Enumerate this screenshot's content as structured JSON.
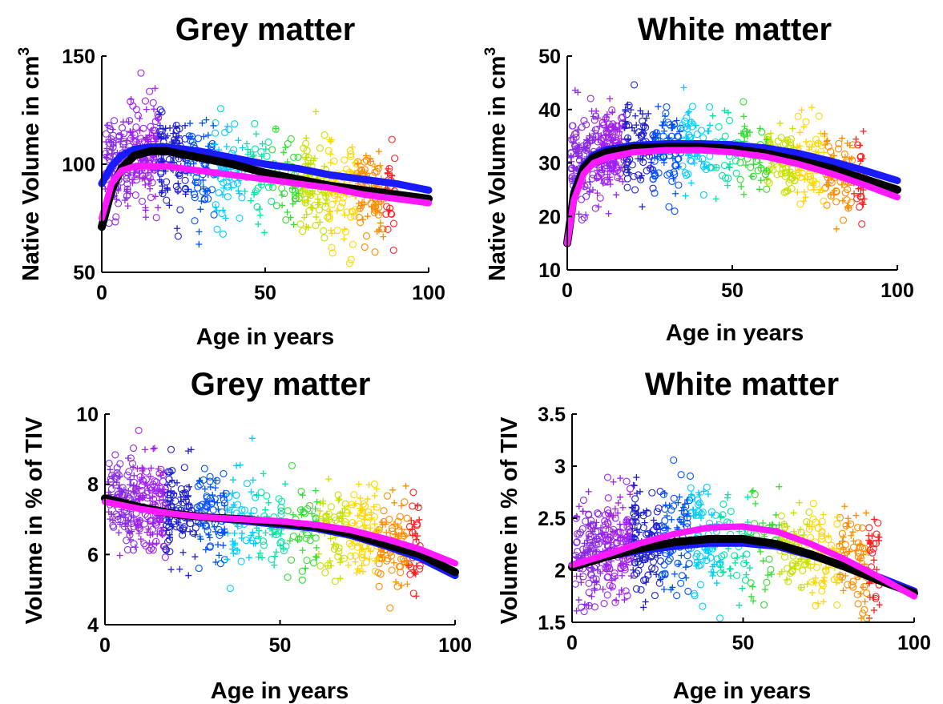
{
  "figure": {
    "colors": {
      "black_curve": "#000000",
      "blue_curve": "#1a1aff",
      "magenta_curve": "#ff19ff",
      "point_palette": [
        "#8a2be2",
        "#a020f0",
        "#1f1fd0",
        "#0050ff",
        "#00ccff",
        "#00e6a0",
        "#33dd33",
        "#c8e000",
        "#ffd700",
        "#ff8c00",
        "#ff2020"
      ],
      "marker_types": [
        "circle",
        "plus"
      ]
    }
  },
  "chart_data": [
    {
      "type": "scatter",
      "title": "Grey matter",
      "xlabel": "Age in years",
      "ylabel": "Native Volume in cm",
      "ylabel_superscript": "3",
      "xlim": [
        0,
        100
      ],
      "ylim": [
        50,
        150
      ],
      "xticks": [
        "0",
        "50",
        "100"
      ],
      "yticks": [
        "50",
        "100",
        "150"
      ],
      "scatter_description_points": {
        "x_range": [
          0,
          95
        ],
        "y_center_by_age": [
          [
            5,
            100
          ],
          [
            15,
            105
          ],
          [
            30,
            100
          ],
          [
            50,
            95
          ],
          [
            70,
            88
          ],
          [
            90,
            85
          ]
        ],
        "spread": 11
      },
      "series": [
        {
          "x": [
            0,
            3,
            6,
            10,
            15,
            20,
            30,
            40,
            50,
            60,
            70,
            80,
            90,
            100
          ],
          "y": [
            71,
            88,
            98,
            104,
            106,
            106,
            103,
            100,
            96,
            93,
            90,
            88,
            86,
            84
          ]
        },
        {
          "x": [
            0,
            3,
            6,
            10,
            15,
            20,
            30,
            40,
            50,
            60,
            70,
            80,
            90,
            100
          ],
          "y": [
            91,
            99,
            104,
            107,
            108,
            108,
            106,
            103,
            100,
            98,
            95,
            93,
            91,
            88
          ]
        },
        {
          "x": [
            0,
            3,
            6,
            10,
            15,
            20,
            30,
            40,
            50,
            60,
            70,
            80,
            90,
            100
          ],
          "y": [
            75,
            91,
            97,
            99,
            99,
            99,
            97,
            95,
            93,
            91,
            89,
            86,
            84,
            82
          ]
        }
      ]
    },
    {
      "type": "scatter",
      "title": "White matter",
      "xlabel": "Age in years",
      "ylabel": "Native Volume in cm",
      "ylabel_superscript": "3",
      "xlim": [
        0,
        100
      ],
      "ylim": [
        10,
        50
      ],
      "xticks": [
        "0",
        "50",
        "100"
      ],
      "yticks": [
        "10",
        "20",
        "30",
        "40",
        "50"
      ],
      "scatter_description_points": {
        "x_range": [
          0,
          95
        ],
        "y_center_by_age": [
          [
            5,
            30
          ],
          [
            15,
            33
          ],
          [
            30,
            33
          ],
          [
            50,
            32
          ],
          [
            70,
            30
          ],
          [
            90,
            27
          ]
        ],
        "spread": 4
      },
      "series": [
        {
          "x": [
            0,
            2,
            5,
            8,
            12,
            20,
            30,
            40,
            50,
            60,
            70,
            80,
            90,
            100
          ],
          "y": [
            15,
            24,
            29,
            31,
            32,
            32.8,
            33,
            33,
            32.6,
            31.8,
            30.5,
            29,
            27,
            25
          ]
        },
        {
          "x": [
            0,
            2,
            5,
            8,
            12,
            20,
            30,
            40,
            50,
            60,
            70,
            80,
            90,
            100
          ],
          "y": [
            15,
            24.5,
            29.5,
            31.5,
            32.5,
            33.3,
            33.6,
            33.6,
            33.4,
            32.8,
            31.8,
            30.3,
            28.6,
            26.7
          ]
        },
        {
          "x": [
            0,
            2,
            5,
            8,
            12,
            20,
            30,
            40,
            50,
            60,
            70,
            80,
            90,
            100
          ],
          "y": [
            15,
            23,
            28,
            30,
            31,
            32,
            32.4,
            32.4,
            32,
            31.2,
            29.8,
            28,
            25.9,
            23.6
          ]
        }
      ]
    },
    {
      "type": "scatter",
      "title": "Grey matter",
      "xlabel": "Age in years",
      "ylabel": "Volume in % of TIV",
      "xlim": [
        0,
        100
      ],
      "ylim": [
        4,
        10
      ],
      "xticks": [
        "0",
        "50",
        "100"
      ],
      "yticks": [
        "4",
        "6",
        "8",
        "10"
      ],
      "scatter_description_points": {
        "x_range": [
          0,
          95
        ],
        "y_center_by_age": [
          [
            5,
            7.6
          ],
          [
            15,
            7.3
          ],
          [
            30,
            7.1
          ],
          [
            50,
            6.9
          ],
          [
            70,
            6.6
          ],
          [
            90,
            6.2
          ]
        ],
        "spread": 0.65
      },
      "series": [
        {
          "x": [
            0,
            10,
            20,
            30,
            40,
            50,
            60,
            70,
            80,
            90,
            100
          ],
          "y": [
            7.6,
            7.35,
            7.15,
            7.05,
            7.0,
            6.9,
            6.8,
            6.6,
            6.3,
            6.0,
            5.5
          ]
        },
        {
          "x": [
            0,
            10,
            20,
            30,
            40,
            50,
            60,
            70,
            80,
            90,
            100
          ],
          "y": [
            7.6,
            7.35,
            7.15,
            7.05,
            6.95,
            6.85,
            6.75,
            6.55,
            6.25,
            5.9,
            5.4
          ]
        },
        {
          "x": [
            0,
            10,
            20,
            30,
            40,
            50,
            60,
            70,
            80,
            90,
            100
          ],
          "y": [
            7.5,
            7.3,
            7.15,
            7.05,
            7.0,
            6.95,
            6.85,
            6.7,
            6.45,
            6.15,
            5.75
          ]
        }
      ]
    },
    {
      "type": "scatter",
      "title": "White matter",
      "xlabel": "Age in years",
      "ylabel": "Volume in % of TIV",
      "xlim": [
        0,
        100
      ],
      "ylim": [
        1.5,
        3.5
      ],
      "xticks": [
        "0",
        "50",
        "100"
      ],
      "yticks": [
        "1.5",
        "2",
        "2.5",
        "3",
        "3.5"
      ],
      "scatter_description_points": {
        "x_range": [
          0,
          95
        ],
        "y_center_by_age": [
          [
            5,
            2.15
          ],
          [
            15,
            2.25
          ],
          [
            30,
            2.3
          ],
          [
            50,
            2.3
          ],
          [
            70,
            2.2
          ],
          [
            90,
            2.0
          ]
        ],
        "spread": 0.25
      },
      "series": [
        {
          "x": [
            0,
            10,
            20,
            30,
            40,
            50,
            60,
            70,
            80,
            90,
            100
          ],
          "y": [
            2.03,
            2.13,
            2.21,
            2.27,
            2.3,
            2.3,
            2.25,
            2.15,
            2.03,
            1.9,
            1.78
          ]
        },
        {
          "x": [
            0,
            10,
            20,
            30,
            40,
            50,
            60,
            70,
            80,
            90,
            100
          ],
          "y": [
            2.05,
            2.13,
            2.19,
            2.23,
            2.26,
            2.26,
            2.23,
            2.14,
            2.04,
            1.93,
            1.8
          ]
        },
        {
          "x": [
            0,
            10,
            20,
            30,
            40,
            50,
            60,
            70,
            80,
            90,
            100
          ],
          "y": [
            2.05,
            2.15,
            2.26,
            2.35,
            2.41,
            2.42,
            2.37,
            2.25,
            2.1,
            1.93,
            1.75
          ]
        }
      ]
    }
  ]
}
